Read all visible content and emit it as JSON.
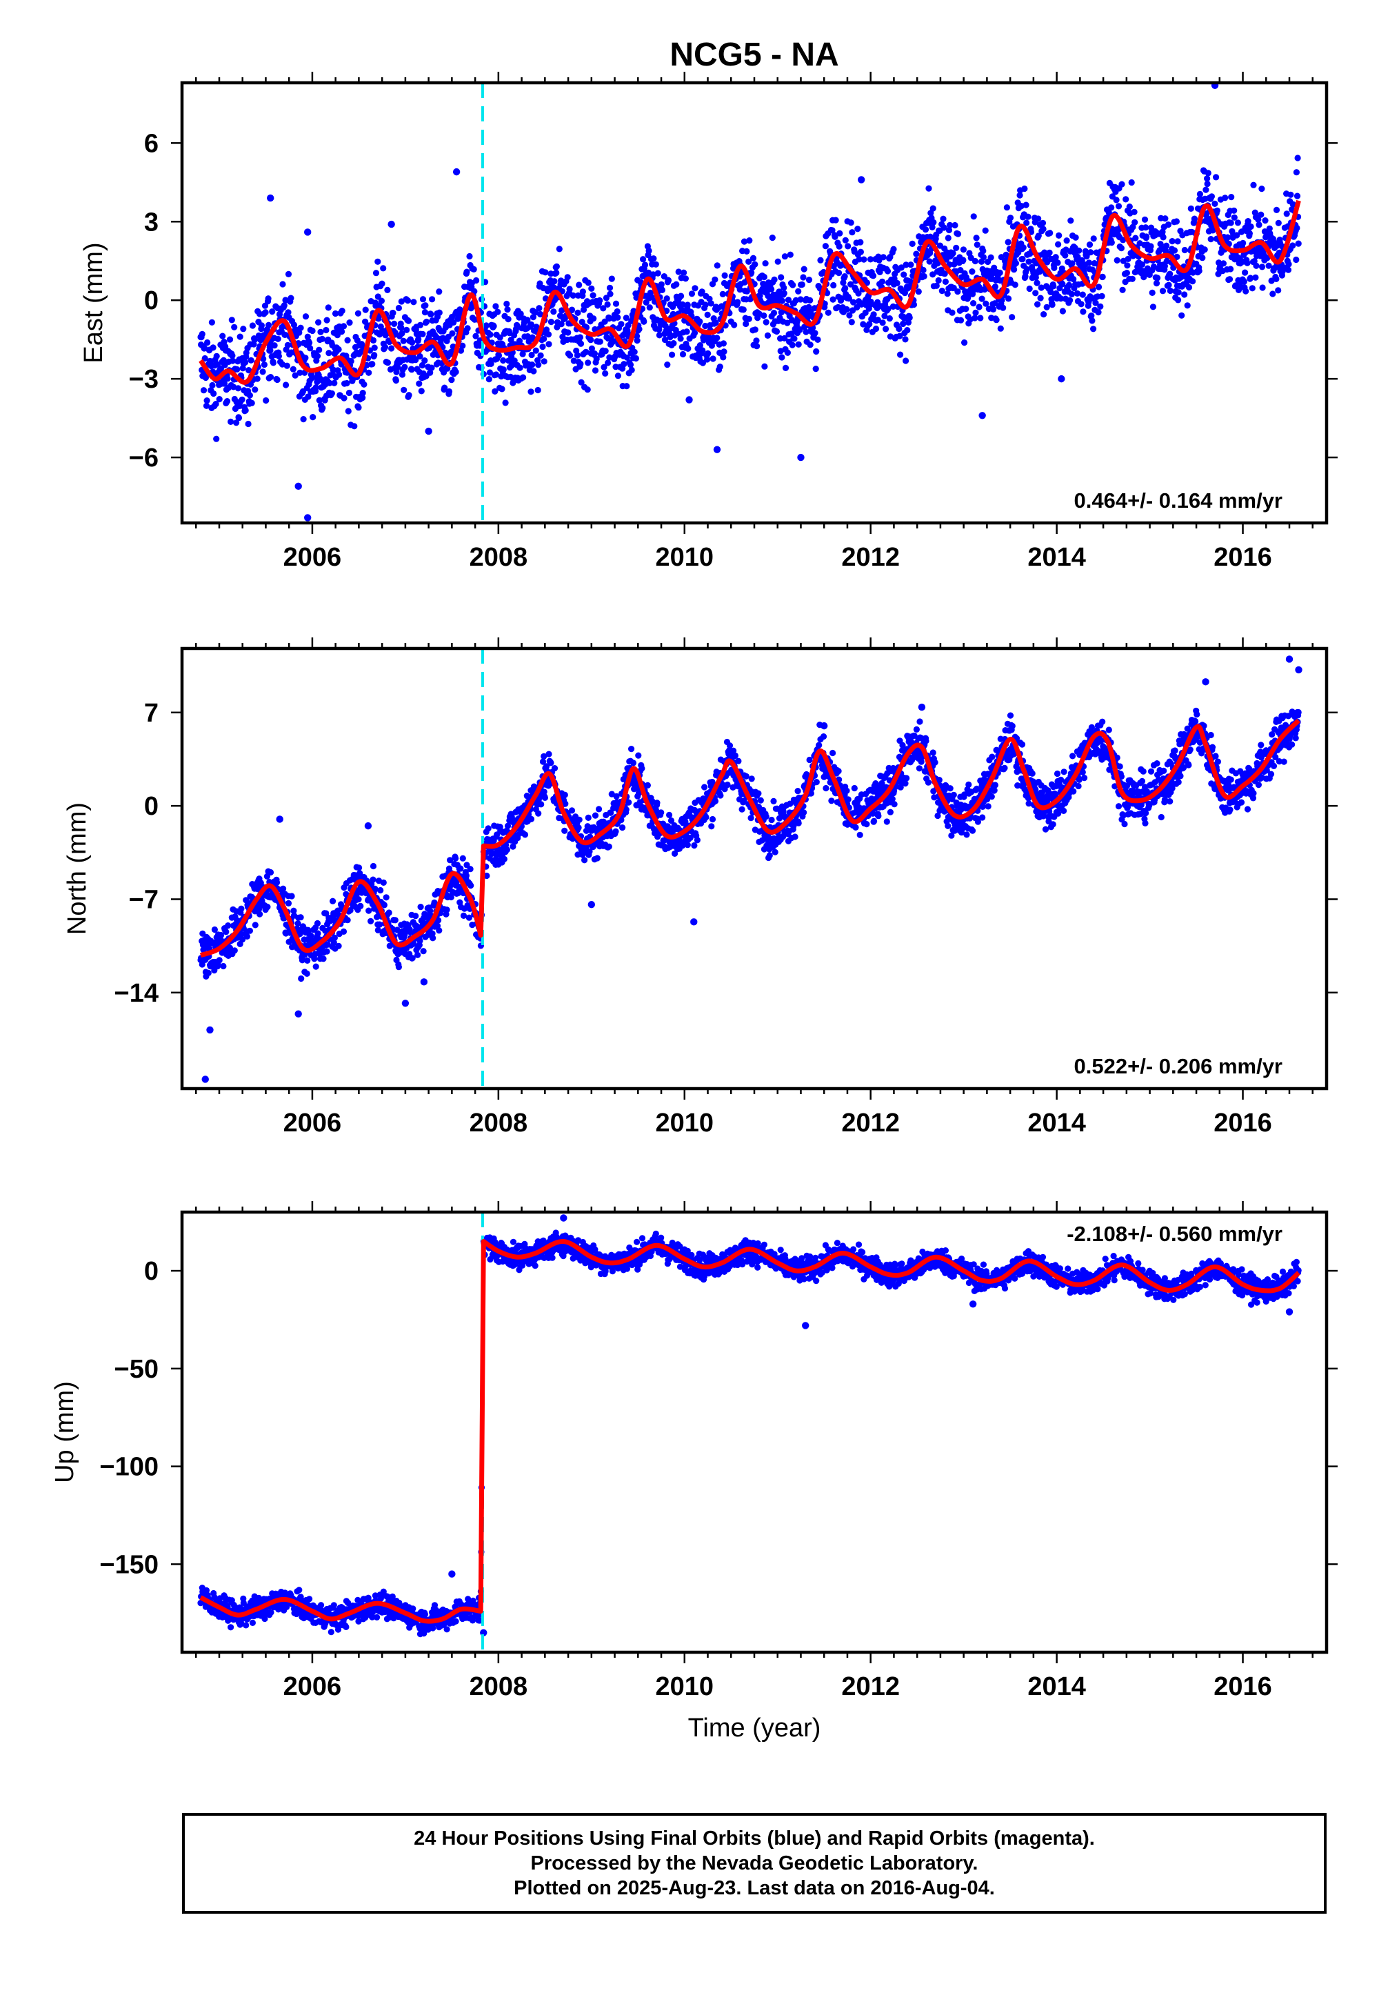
{
  "title": "NCG5 - NA",
  "xlabel": "Time (year)",
  "colors": {
    "data": "#0000ff",
    "model": "#ff0000",
    "offset_line": "#00e5ee"
  },
  "footer": {
    "line1": "24 Hour Positions Using Final Orbits (blue) and Rapid Orbits (magenta).",
    "line2": "Processed by the Nevada Geodetic Laboratory.",
    "line3": "Plotted on 2025-Aug-23. Last data on 2016-Aug-04."
  },
  "chart_data": [
    {
      "type": "scatter",
      "panel": "east",
      "ylabel": "East (mm)",
      "rate_label": "0.464+/- 0.164 mm/yr",
      "rate_placement": "bottom-right",
      "xlim": [
        2004.6,
        2016.9
      ],
      "ylim": [
        -8.5,
        8.3
      ],
      "xticks": [
        2006,
        2008,
        2010,
        2012,
        2014,
        2016
      ],
      "yticks": [
        6,
        3,
        0,
        -3,
        -6
      ],
      "ytick_labels": [
        "6",
        "3",
        "0",
        "−3",
        "−6"
      ],
      "offset_epoch": 2007.83,
      "data_range": [
        2004.8,
        2016.6
      ],
      "series": [
        {
          "kind": "daily_positions",
          "color": "#0000ff",
          "x": [
            2004.8,
            2004.95,
            2005.1,
            2005.3,
            2005.5,
            2005.7,
            2005.9,
            2006.1,
            2006.3,
            2006.5,
            2006.7,
            2006.9,
            2007.1,
            2007.3,
            2007.5,
            2007.7,
            2007.85,
            2008.0,
            2008.2,
            2008.4,
            2008.6,
            2008.8,
            2009.0,
            2009.2,
            2009.4,
            2009.6,
            2009.8,
            2010.0,
            2010.2,
            2010.4,
            2010.6,
            2010.8,
            2011.0,
            2011.2,
            2011.4,
            2011.6,
            2011.8,
            2012.0,
            2012.2,
            2012.4,
            2012.6,
            2012.8,
            2013.0,
            2013.2,
            2013.4,
            2013.6,
            2013.8,
            2014.0,
            2014.2,
            2014.4,
            2014.6,
            2014.8,
            2015.0,
            2015.2,
            2015.4,
            2015.6,
            2015.8,
            2016.0,
            2016.2,
            2016.4,
            2016.6
          ],
          "y": [
            -2.3,
            -3.0,
            -2.7,
            -3.1,
            -1.6,
            -0.8,
            -2.5,
            -2.6,
            -2.2,
            -2.8,
            -0.4,
            -1.7,
            -2.0,
            -1.6,
            -2.4,
            0.2,
            -1.5,
            -1.9,
            -1.8,
            -1.6,
            0.3,
            -0.8,
            -1.3,
            -1.1,
            -1.7,
            0.8,
            -0.7,
            -0.6,
            -1.2,
            -0.9,
            1.3,
            -0.2,
            -0.2,
            -0.5,
            -0.8,
            1.7,
            1.1,
            0.3,
            0.4,
            -0.2,
            2.2,
            1.3,
            0.6,
            0.8,
            0.2,
            2.8,
            1.6,
            0.8,
            1.2,
            0.6,
            3.2,
            2.1,
            1.6,
            1.7,
            1.2,
            3.6,
            2.1,
            1.9,
            2.2,
            1.5,
            3.8
          ]
        },
        {
          "kind": "outliers",
          "color": "#0000ff",
          "x": [
            2005.55,
            2005.95,
            2006.85,
            2007.55,
            2005.85,
            2005.95,
            2007.25,
            2010.05,
            2010.35,
            2011.25,
            2011.9,
            2013.2,
            2014.05,
            2015.7
          ],
          "y": [
            3.9,
            2.6,
            2.9,
            4.9,
            -7.1,
            -8.3,
            -5.0,
            -3.8,
            -5.7,
            -6.0,
            4.6,
            -4.4,
            -3.0,
            8.2
          ]
        },
        {
          "kind": "model",
          "color": "#ff0000",
          "x": [
            2004.8,
            2004.95,
            2005.1,
            2005.3,
            2005.5,
            2005.7,
            2005.9,
            2006.1,
            2006.3,
            2006.5,
            2006.7,
            2006.9,
            2007.1,
            2007.3,
            2007.5,
            2007.7,
            2007.85,
            2008.0,
            2008.2,
            2008.4,
            2008.6,
            2008.8,
            2009.0,
            2009.2,
            2009.4,
            2009.6,
            2009.8,
            2010.0,
            2010.2,
            2010.4,
            2010.6,
            2010.8,
            2011.0,
            2011.2,
            2011.4,
            2011.6,
            2011.8,
            2012.0,
            2012.2,
            2012.4,
            2012.6,
            2012.8,
            2013.0,
            2013.2,
            2013.4,
            2013.6,
            2013.8,
            2014.0,
            2014.2,
            2014.4,
            2014.6,
            2014.8,
            2015.0,
            2015.2,
            2015.4,
            2015.6,
            2015.8,
            2016.0,
            2016.2,
            2016.4,
            2016.6
          ],
          "y": [
            -2.3,
            -3.0,
            -2.7,
            -3.1,
            -1.6,
            -0.8,
            -2.5,
            -2.6,
            -2.2,
            -2.8,
            -0.4,
            -1.7,
            -2.0,
            -1.6,
            -2.4,
            0.2,
            -1.5,
            -1.9,
            -1.8,
            -1.6,
            0.3,
            -0.8,
            -1.3,
            -1.1,
            -1.7,
            0.8,
            -0.7,
            -0.6,
            -1.2,
            -0.9,
            1.3,
            -0.2,
            -0.2,
            -0.5,
            -0.8,
            1.7,
            1.1,
            0.3,
            0.4,
            -0.2,
            2.2,
            1.3,
            0.6,
            0.8,
            0.2,
            2.8,
            1.6,
            0.8,
            1.2,
            0.6,
            3.2,
            2.1,
            1.6,
            1.7,
            1.2,
            3.6,
            2.1,
            1.9,
            2.2,
            1.5,
            3.8
          ]
        }
      ]
    },
    {
      "type": "scatter",
      "panel": "north",
      "ylabel": "North (mm)",
      "rate_label": "0.522+/- 0.206 mm/yr",
      "rate_placement": "bottom-right",
      "xlim": [
        2004.6,
        2016.9
      ],
      "ylim": [
        -21.2,
        11.8
      ],
      "xticks": [
        2006,
        2008,
        2010,
        2012,
        2014,
        2016
      ],
      "yticks": [
        7,
        0,
        -7,
        -14
      ],
      "ytick_labels": [
        "7",
        "0",
        "−7",
        "−14"
      ],
      "offset_epoch": 2007.83,
      "data_range": [
        2004.8,
        2016.6
      ],
      "series": [
        {
          "kind": "daily_positions",
          "color": "#0000ff",
          "x": [
            2004.8,
            2005.0,
            2005.2,
            2005.4,
            2005.55,
            2005.7,
            2005.9,
            2006.1,
            2006.3,
            2006.5,
            2006.7,
            2006.9,
            2007.1,
            2007.3,
            2007.5,
            2007.7,
            2007.81,
            2007.84,
            2008.0,
            2008.2,
            2008.4,
            2008.55,
            2008.7,
            2008.9,
            2009.1,
            2009.3,
            2009.45,
            2009.6,
            2009.8,
            2010.0,
            2010.2,
            2010.4,
            2010.5,
            2010.7,
            2010.9,
            2011.1,
            2011.3,
            2011.45,
            2011.6,
            2011.8,
            2012.0,
            2012.2,
            2012.4,
            2012.55,
            2012.7,
            2012.9,
            2013.1,
            2013.3,
            2013.5,
            2013.65,
            2013.8,
            2014.0,
            2014.2,
            2014.4,
            2014.55,
            2014.7,
            2014.9,
            2015.1,
            2015.3,
            2015.5,
            2015.6,
            2015.8,
            2016.0,
            2016.2,
            2016.4,
            2016.6
          ],
          "y": [
            -11.2,
            -10.7,
            -9.3,
            -7.0,
            -6.0,
            -7.7,
            -10.7,
            -10.2,
            -8.6,
            -5.7,
            -7.3,
            -10.3,
            -9.8,
            -8.5,
            -5.1,
            -7.0,
            -9.7,
            -3.0,
            -2.9,
            -1.5,
            0.8,
            2.4,
            -0.5,
            -2.7,
            -2.1,
            -0.6,
            2.8,
            0.2,
            -2.2,
            -1.9,
            -0.4,
            2.3,
            3.3,
            0.5,
            -1.9,
            -1.2,
            0.8,
            4.1,
            2.1,
            -1.1,
            -0.2,
            1.2,
            3.9,
            4.4,
            1.6,
            -0.7,
            -0.3,
            2.0,
            5.0,
            2.6,
            0.0,
            0.4,
            2.3,
            5.2,
            4.8,
            1.0,
            0.4,
            1.2,
            3.1,
            5.9,
            4.6,
            0.8,
            1.5,
            2.8,
            5.0,
            6.4
          ]
        },
        {
          "kind": "outliers",
          "color": "#0000ff",
          "x": [
            2004.85,
            2004.9,
            2005.65,
            2005.85,
            2006.6,
            2007.0,
            2007.2,
            2009.0,
            2010.1,
            2011.5,
            2012.55,
            2015.6,
            2016.5,
            2016.6
          ],
          "y": [
            -20.5,
            -16.8,
            -1.0,
            -15.6,
            -1.5,
            -14.8,
            -13.2,
            -7.4,
            -8.7,
            6.0,
            7.4,
            9.3,
            11.0,
            10.2
          ]
        },
        {
          "kind": "model",
          "color": "#ff0000",
          "x": [
            2004.8,
            2005.0,
            2005.2,
            2005.4,
            2005.55,
            2005.7,
            2005.9,
            2006.1,
            2006.3,
            2006.5,
            2006.7,
            2006.9,
            2007.1,
            2007.3,
            2007.5,
            2007.7,
            2007.81,
            2007.84,
            2008.0,
            2008.2,
            2008.4,
            2008.55,
            2008.7,
            2008.9,
            2009.1,
            2009.3,
            2009.45,
            2009.6,
            2009.8,
            2010.0,
            2010.2,
            2010.4,
            2010.5,
            2010.7,
            2010.9,
            2011.1,
            2011.3,
            2011.45,
            2011.6,
            2011.8,
            2012.0,
            2012.2,
            2012.4,
            2012.55,
            2012.7,
            2012.9,
            2013.1,
            2013.3,
            2013.5,
            2013.65,
            2013.8,
            2014.0,
            2014.2,
            2014.4,
            2014.55,
            2014.7,
            2014.9,
            2015.1,
            2015.3,
            2015.5,
            2015.6,
            2015.8,
            2016.0,
            2016.2,
            2016.4,
            2016.6
          ],
          "y": [
            -11.2,
            -10.7,
            -9.3,
            -7.0,
            -6.0,
            -7.7,
            -10.7,
            -10.2,
            -8.6,
            -5.7,
            -7.3,
            -10.3,
            -9.8,
            -8.5,
            -5.1,
            -7.0,
            -9.7,
            -3.0,
            -2.9,
            -1.5,
            0.8,
            2.4,
            -0.5,
            -2.7,
            -2.1,
            -0.6,
            2.8,
            0.2,
            -2.2,
            -1.9,
            -0.4,
            2.3,
            3.3,
            0.5,
            -1.9,
            -1.2,
            0.8,
            4.1,
            2.1,
            -1.1,
            -0.2,
            1.2,
            3.9,
            4.4,
            1.6,
            -0.7,
            -0.3,
            2.0,
            5.0,
            2.6,
            0.0,
            0.4,
            2.3,
            5.2,
            4.8,
            1.0,
            0.4,
            1.2,
            3.1,
            5.9,
            4.6,
            0.8,
            1.5,
            2.8,
            5.0,
            6.4
          ]
        }
      ]
    },
    {
      "type": "scatter",
      "panel": "up",
      "ylabel": "Up (mm)",
      "rate_label": "-2.108+/- 0.560 mm/yr",
      "rate_placement": "top-right",
      "xlim": [
        2004.6,
        2016.9
      ],
      "ylim": [
        -195,
        30
      ],
      "xticks": [
        2006,
        2008,
        2010,
        2012,
        2014,
        2016
      ],
      "yticks": [
        0,
        -50,
        -100,
        -150
      ],
      "ytick_labels": [
        "0",
        "−50",
        "−100",
        "−150"
      ],
      "offset_epoch": 2007.83,
      "data_range": [
        2004.8,
        2016.6
      ],
      "series": [
        {
          "kind": "daily_positions",
          "color": "#0000ff",
          "x": [
            2004.8,
            2005.0,
            2005.2,
            2005.4,
            2005.7,
            2006.0,
            2006.2,
            2006.4,
            2006.7,
            2007.0,
            2007.2,
            2007.4,
            2007.6,
            2007.81,
            2007.84,
            2008.0,
            2008.2,
            2008.4,
            2008.7,
            2009.0,
            2009.2,
            2009.4,
            2009.7,
            2010.0,
            2010.2,
            2010.4,
            2010.7,
            2011.0,
            2011.2,
            2011.4,
            2011.7,
            2012.0,
            2012.2,
            2012.4,
            2012.7,
            2013.0,
            2013.2,
            2013.4,
            2013.7,
            2014.0,
            2014.2,
            2014.4,
            2014.7,
            2015.0,
            2015.2,
            2015.4,
            2015.7,
            2016.0,
            2016.2,
            2016.4,
            2016.6
          ],
          "y": [
            -167,
            -172,
            -176,
            -173,
            -168,
            -174,
            -178,
            -175,
            -170,
            -175,
            -179,
            -178,
            -173,
            -174,
            15,
            10,
            7,
            9,
            15,
            7,
            4,
            6,
            13,
            6,
            2,
            4,
            11,
            4,
            0,
            2,
            9,
            2,
            -2,
            -1,
            7,
            0,
            -5,
            -4,
            5,
            -3,
            -7,
            -5,
            3,
            -6,
            -10,
            -7,
            2,
            -7,
            -10,
            -9,
            -1
          ]
        },
        {
          "kind": "outliers",
          "color": "#0000ff",
          "x": [
            2007.5,
            2007.84,
            2008.7,
            2011.3,
            2013.1,
            2016.5
          ],
          "y": [
            -155,
            -185,
            27,
            -28,
            -17,
            -21
          ]
        },
        {
          "kind": "model",
          "color": "#ff0000",
          "x": [
            2004.8,
            2005.0,
            2005.2,
            2005.4,
            2005.7,
            2006.0,
            2006.2,
            2006.4,
            2006.7,
            2007.0,
            2007.2,
            2007.4,
            2007.6,
            2007.81,
            2007.84,
            2008.0,
            2008.2,
            2008.4,
            2008.7,
            2009.0,
            2009.2,
            2009.4,
            2009.7,
            2010.0,
            2010.2,
            2010.4,
            2010.7,
            2011.0,
            2011.2,
            2011.4,
            2011.7,
            2012.0,
            2012.2,
            2012.4,
            2012.7,
            2013.0,
            2013.2,
            2013.4,
            2013.7,
            2014.0,
            2014.2,
            2014.4,
            2014.7,
            2015.0,
            2015.2,
            2015.4,
            2015.7,
            2016.0,
            2016.2,
            2016.4,
            2016.6
          ],
          "y": [
            -167,
            -172,
            -176,
            -173,
            -168,
            -174,
            -178,
            -175,
            -170,
            -175,
            -179,
            -178,
            -173,
            -174,
            15,
            10,
            7,
            9,
            15,
            7,
            4,
            6,
            13,
            6,
            2,
            4,
            11,
            4,
            0,
            2,
            9,
            2,
            -2,
            -1,
            7,
            0,
            -5,
            -4,
            5,
            -3,
            -7,
            -5,
            3,
            -6,
            -10,
            -7,
            2,
            -7,
            -10,
            -9,
            -1
          ]
        }
      ]
    }
  ]
}
